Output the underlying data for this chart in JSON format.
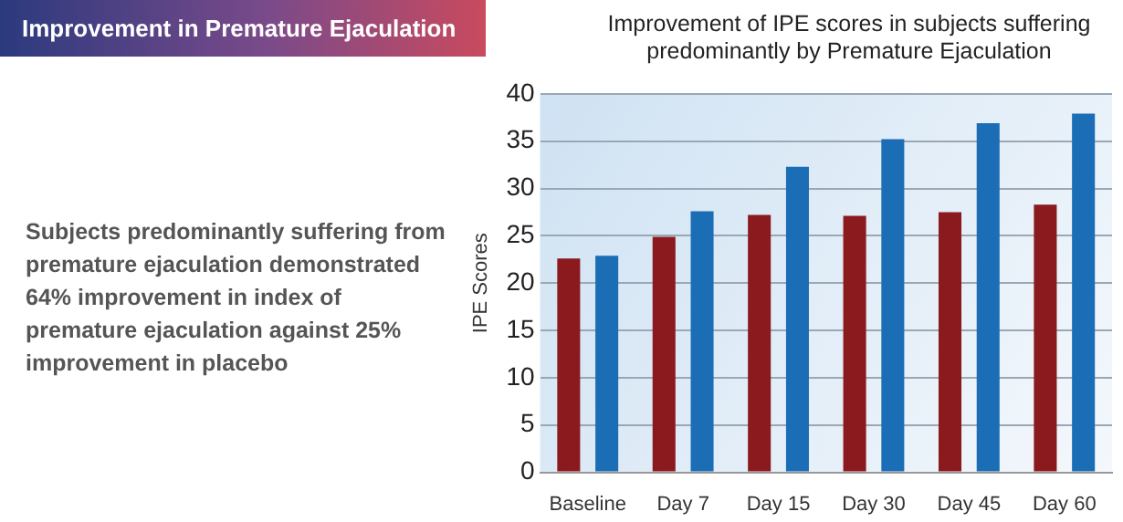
{
  "chart_data": {
    "type": "bar",
    "title": "Improvement of IPE scores in subjects suffering predominantly by Premature Ejaculation",
    "ylabel": "IPE Scores",
    "annotations": [
      "Improvement in Premature Ejaculation",
      "Subjects predominantly suffering from premature ejaculation demonstrated 64% improvement in index of premature ejaculation against 25% improvement in placebo"
    ],
    "categories": [
      "Baseline",
      "Day 7",
      "Day 15",
      "Day 30",
      "Day 45",
      "Day 60"
    ],
    "series": [
      {
        "color": "#8b1a1e",
        "values": [
          22.6,
          24.9,
          27.2,
          27.1,
          27.5,
          28.3
        ]
      },
      {
        "color": "#1b6db5",
        "values": [
          22.9,
          27.6,
          32.3,
          35.2,
          36.9,
          37.9
        ]
      }
    ],
    "ylim": [
      0,
      40
    ],
    "yticks": [
      0,
      5,
      10,
      15,
      20,
      25,
      30,
      35,
      40
    ],
    "grid": "y"
  }
}
